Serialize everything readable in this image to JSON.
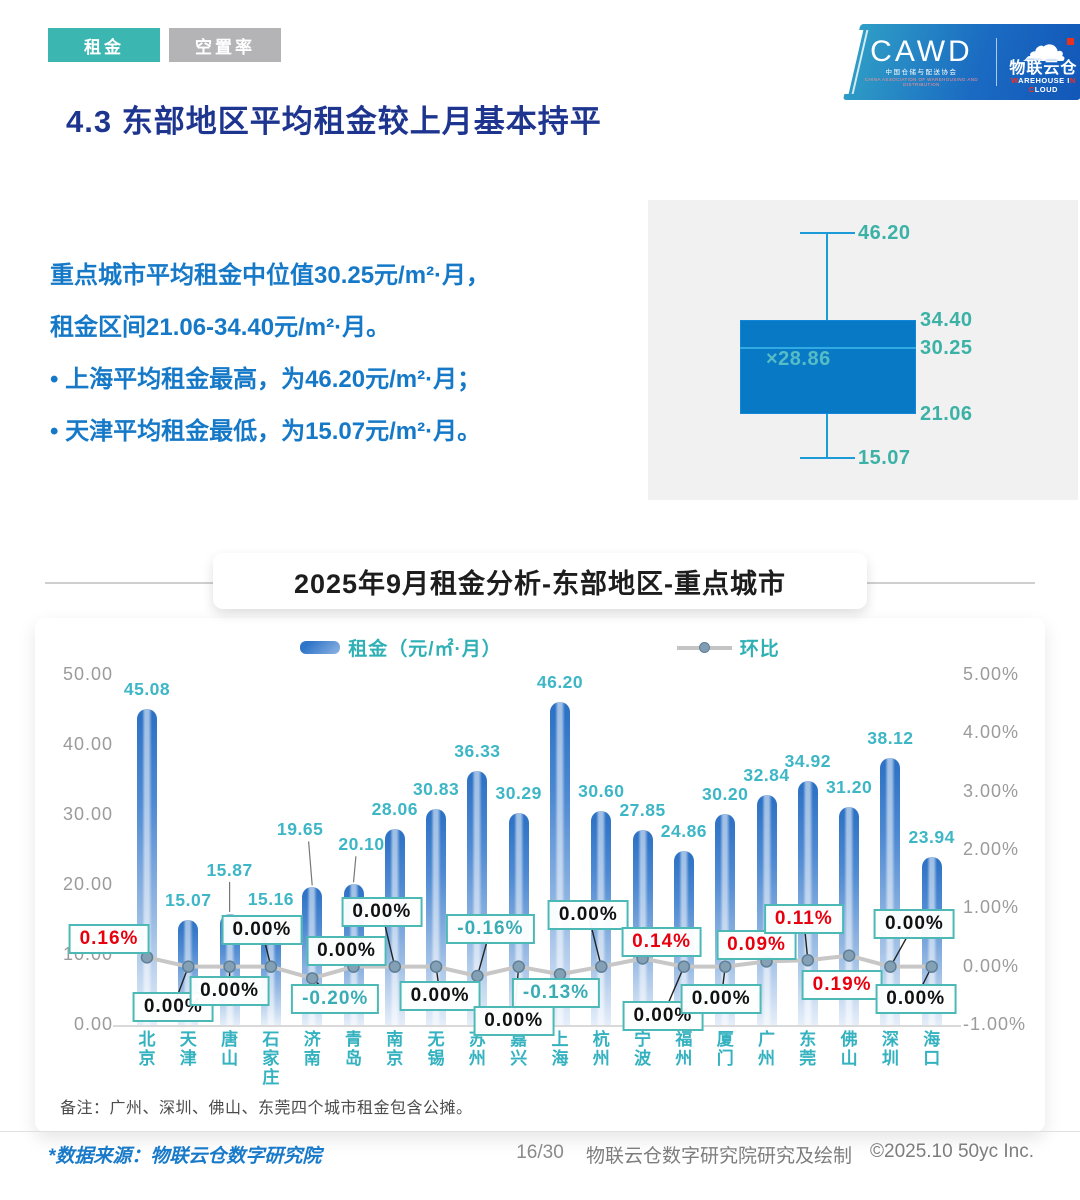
{
  "tabs": [
    {
      "label": "租金",
      "active": true
    },
    {
      "label": "空置率",
      "active": false
    }
  ],
  "logo": {
    "cawd": "CAWD",
    "cawd_sub": "中国仓储与配送协会",
    "cawd_sub2": "CHINA ASSOCIATION OF WAREHOUSING AND DISTRIBUTION",
    "cloud_name": "物联云仓",
    "cloud_sub_w": "W",
    "cloud_sub_mid": "AREHOUSE I",
    "cloud_sub_n": "N",
    "cloud_sub_sp": " ",
    "cloud_sub_c": "C",
    "cloud_sub_end": "LOUD"
  },
  "title": "4.3 东部地区平均租金较上月基本持平",
  "summary": {
    "line1": "重点城市平均租金中位值30.25元/m²·月，",
    "line2": "租金区间21.06-34.40元/m²·月。",
    "bullets": [
      "•  上海平均租金最高，为46.20元/m²·月；",
      "•  天津平均租金最低，为15.07元/m²·月。"
    ]
  },
  "boxplot": {
    "max": "46.20",
    "q3": "34.40",
    "median": "30.25",
    "mean": "×28.86",
    "q1": "21.06",
    "min": "15.07"
  },
  "chart_data": {
    "type": "bar",
    "title": "2025年9月租金分析-东部地区-重点城市",
    "categories": [
      "北京",
      "天津",
      "唐山",
      "石家庄",
      "济南",
      "青岛",
      "南京",
      "无锡",
      "苏州",
      "嘉兴",
      "上海",
      "杭州",
      "宁波",
      "福州",
      "厦门",
      "广州",
      "东莞",
      "佛山",
      "深圳",
      "海口"
    ],
    "series": [
      {
        "name": "租金（元/㎡·月）",
        "type": "bar",
        "values": [
          45.08,
          15.07,
          15.87,
          15.16,
          19.65,
          20.1,
          28.06,
          30.83,
          36.33,
          30.29,
          46.2,
          30.6,
          27.85,
          24.86,
          30.2,
          32.84,
          34.92,
          31.2,
          38.12,
          23.94
        ]
      },
      {
        "name": "环比",
        "type": "line",
        "values": [
          0.16,
          0.0,
          0.0,
          0.0,
          -0.2,
          0.0,
          0.0,
          0.0,
          -0.16,
          0.0,
          -0.13,
          0.0,
          0.14,
          0.0,
          0.0,
          0.09,
          0.11,
          0.19,
          0.0,
          0.0
        ],
        "labels": [
          "0.16%",
          "0.00%",
          "0.00%",
          "0.00%",
          "-0.20%",
          "0.00%",
          "0.00%",
          "0.00%",
          "-0.16%",
          "0.00%",
          "-0.13%",
          "0.00%",
          "0.14%",
          "0.00%",
          "0.00%",
          "0.09%",
          "0.11%",
          "0.19%",
          "0.00%",
          "0.00%"
        ]
      }
    ],
    "left_axis": {
      "ticks": [
        "50.00",
        "40.00",
        "30.00",
        "20.00",
        "10.00",
        "0.00"
      ],
      "min": 0,
      "max": 50
    },
    "right_axis": {
      "ticks": [
        "5.00%",
        "4.00%",
        "3.00%",
        "2.00%",
        "1.00%",
        "0.00%",
        "-1.00%"
      ],
      "min": -1,
      "max": 5
    },
    "grid": false,
    "legend_position": "top"
  },
  "note": "备注：广州、深圳、佛山、东莞四个城市租金包含公摊。",
  "footer": {
    "source": "*数据来源：物联云仓数字研究院",
    "page": "16/30",
    "credit": "物联云仓数字研究院研究及绘制",
    "copyright": "©2025.10 50yc Inc."
  },
  "colors": {
    "accent_teal": "#3ab5b5",
    "bar_blue": "#2b70c4",
    "box_blue": "#0879c5",
    "positive_red": "#e8000f",
    "title_navy": "#1e3590",
    "body_blue": "#1579c8"
  }
}
